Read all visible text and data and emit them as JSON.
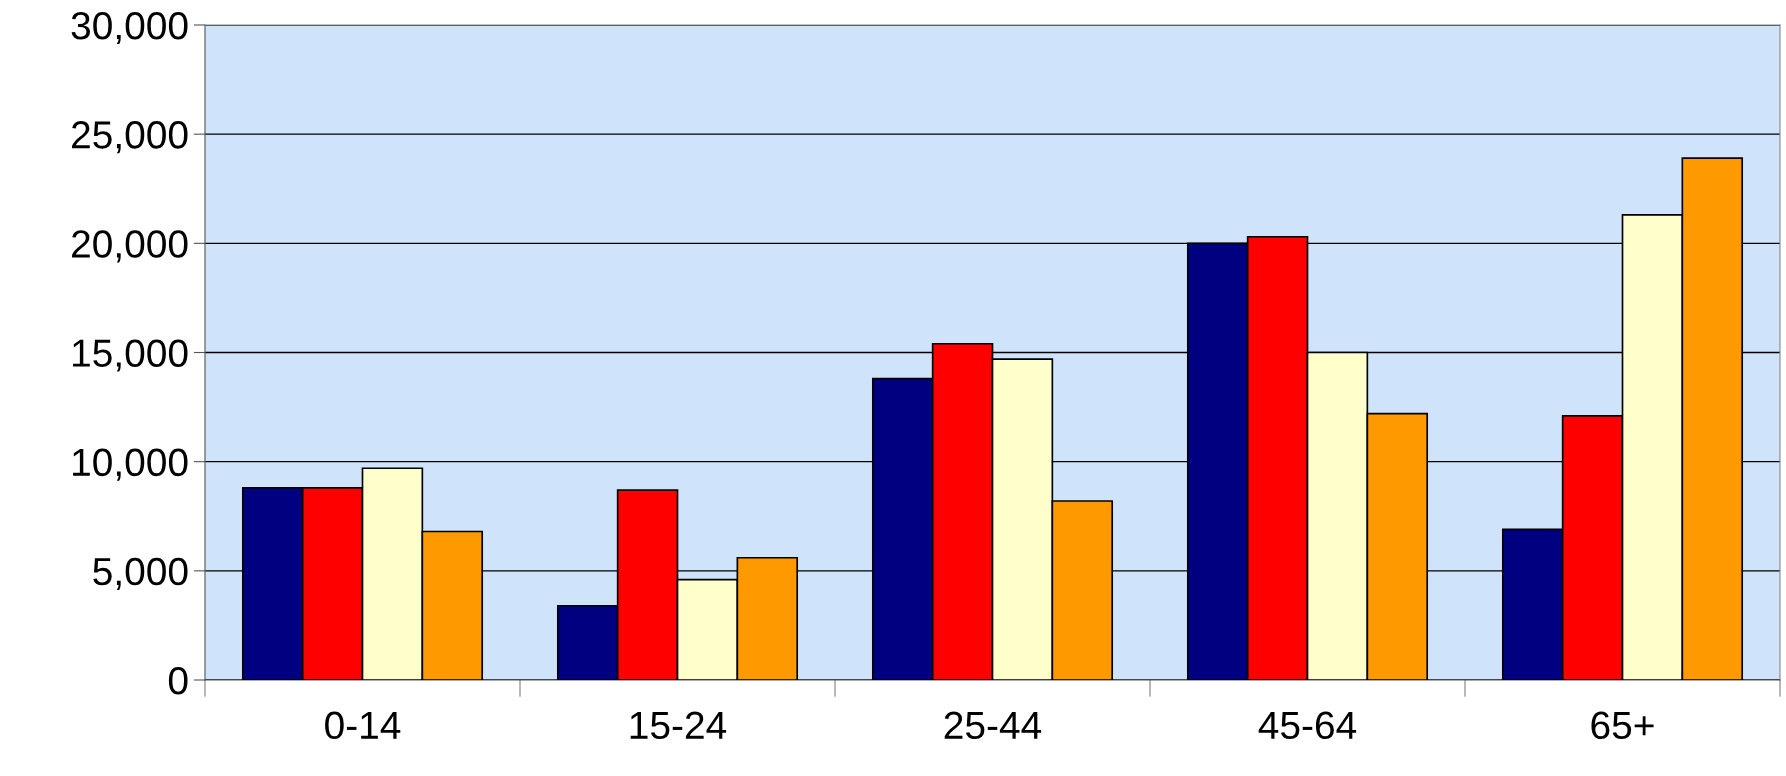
{
  "chart_data": {
    "type": "bar",
    "categories": [
      "0-14",
      "15-24",
      "25-44",
      "45-64",
      "65+"
    ],
    "series": [
      {
        "color": "#000080",
        "values": [
          8800,
          3400,
          13800,
          20000,
          6900
        ]
      },
      {
        "color": "#ff0000",
        "values": [
          8800,
          8700,
          15400,
          20300,
          12100
        ]
      },
      {
        "color": "#ffffcc",
        "values": [
          9700,
          4600,
          14700,
          15000,
          21300
        ]
      },
      {
        "color": "#ff9900",
        "values": [
          6800,
          5600,
          8200,
          12200,
          23900
        ]
      }
    ],
    "ylim": [
      0,
      30000
    ],
    "yticks": [
      {
        "value": 0,
        "label": "0"
      },
      {
        "value": 5000,
        "label": "5,000"
      },
      {
        "value": 10000,
        "label": "10,000"
      },
      {
        "value": 15000,
        "label": "15,000"
      },
      {
        "value": 20000,
        "label": "20,000"
      },
      {
        "value": 25000,
        "label": "25,000"
      },
      {
        "value": 30000,
        "label": "30,000"
      }
    ],
    "grid": "y"
  }
}
